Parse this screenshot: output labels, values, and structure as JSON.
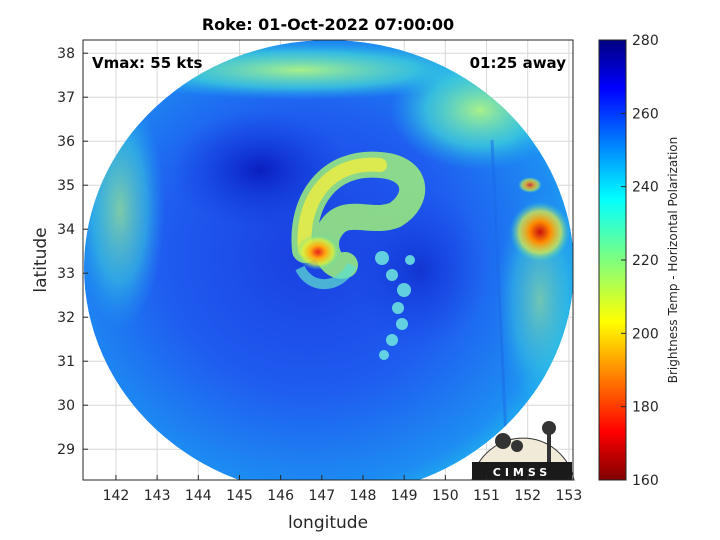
{
  "chart_data": {
    "type": "heatmap",
    "title": "Roke: 01-Oct-2022 07:00:00",
    "xlabel": "longitude",
    "ylabel": "latitude",
    "xlim": [
      141.2,
      153.1
    ],
    "ylim": [
      28.3,
      38.3
    ],
    "xticks": [
      "142",
      "143",
      "144",
      "145",
      "146",
      "147",
      "148",
      "149",
      "150",
      "151",
      "152",
      "153"
    ],
    "yticks": [
      "29",
      "30",
      "31",
      "32",
      "33",
      "34",
      "35",
      "36",
      "37",
      "38"
    ],
    "grid": true,
    "annotations": {
      "vmax": "Vmax: 55 kts",
      "time_away": "01:25 away"
    },
    "colorbar": {
      "label": "Brightness Temp - Horizontal Polarization",
      "range": [
        160,
        280
      ],
      "ticks": [
        "160",
        "180",
        "200",
        "220",
        "240",
        "260",
        "280"
      ],
      "colormap": "jet"
    },
    "logo_text": "CIMSS"
  }
}
